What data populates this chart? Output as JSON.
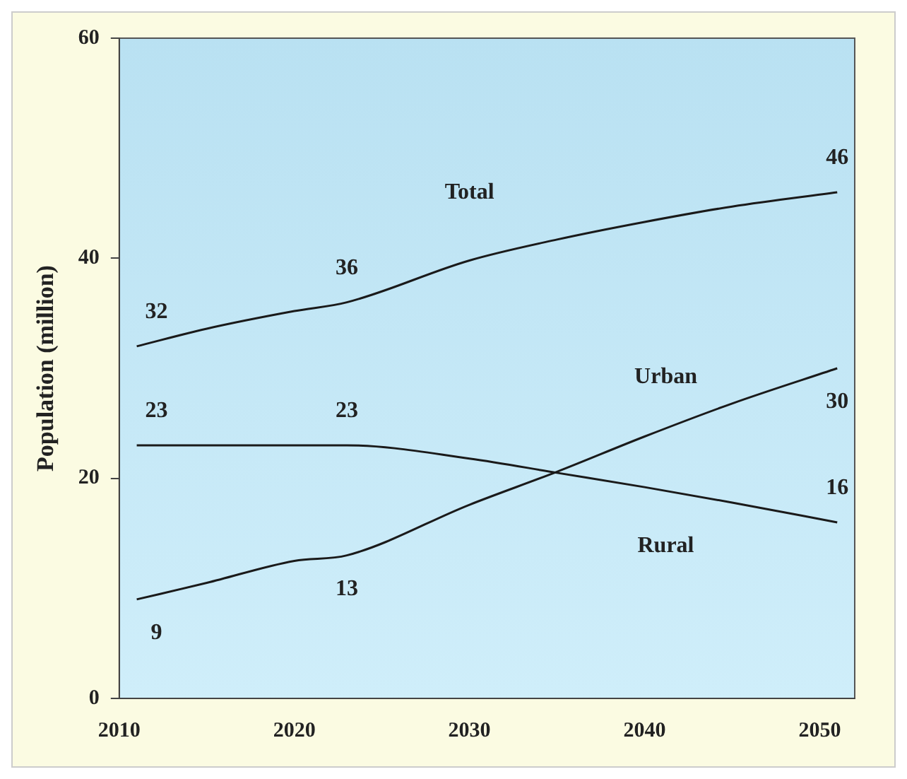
{
  "chart_data": {
    "type": "line",
    "ylabel": "Population (million)",
    "x": [
      2011,
      2015,
      2020,
      2023,
      2030,
      2035,
      2040,
      2045,
      2051
    ],
    "series": [
      {
        "name": "Total",
        "color": "#1a1a1a",
        "values": [
          32,
          33.6,
          35.2,
          36,
          39.8,
          41.7,
          43.3,
          44.7,
          46
        ],
        "value_labels": [
          "32",
          null,
          null,
          "36",
          null,
          null,
          null,
          null,
          "46"
        ]
      },
      {
        "name": "Urban",
        "color": "#1a1a1a",
        "values": [
          9,
          10.5,
          12.5,
          13,
          17.6,
          20.6,
          23.8,
          26.8,
          30
        ],
        "value_labels": [
          "9",
          null,
          null,
          "13",
          null,
          null,
          null,
          null,
          "30"
        ]
      },
      {
        "name": "Rural",
        "color": "#1a1a1a",
        "values": [
          23,
          23,
          23,
          23,
          21.8,
          20.5,
          19.2,
          17.8,
          16
        ],
        "value_labels": [
          "23",
          null,
          null,
          "23",
          null,
          null,
          null,
          null,
          "16"
        ]
      }
    ],
    "xlim": [
      2010,
      2052
    ],
    "xticks": [
      2010,
      2020,
      2030,
      2040,
      2050
    ],
    "ylim": [
      0,
      60
    ],
    "yticks": [
      0,
      20,
      40,
      60
    ],
    "grid": false,
    "legend": false,
    "marker": "none",
    "line_style": "solid"
  }
}
